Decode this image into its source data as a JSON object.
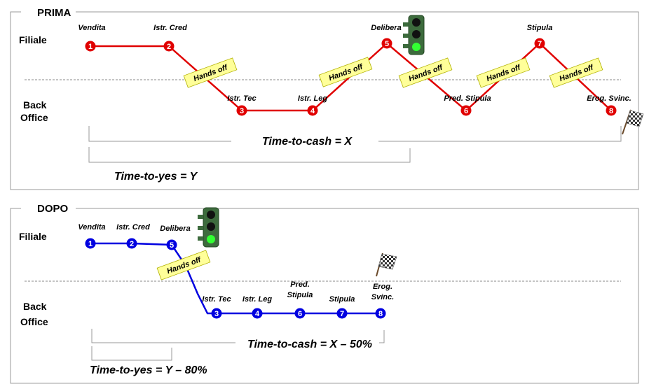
{
  "sections": [
    {
      "title": "PRIMA",
      "rows": {
        "filiale": "Filiale",
        "back_office": [
          "Back",
          "Office"
        ]
      },
      "color": "#e00000",
      "steps": [
        {
          "num": "1",
          "label": "Vendita"
        },
        {
          "num": "2",
          "label": "Istr. Cred"
        },
        {
          "num": "3",
          "label": "Istr. Tec"
        },
        {
          "num": "4",
          "label": "Istr. Leg"
        },
        {
          "num": "5",
          "label": "Delibera"
        },
        {
          "num": "6",
          "label": "Pred. Stipula"
        },
        {
          "num": "7",
          "label": "Stipula"
        },
        {
          "num": "8",
          "label": "Erog. Svinc."
        }
      ],
      "hands_off": [
        "Hands off",
        "Hands off",
        "Hands off",
        "Hands off",
        "Hands off"
      ],
      "time_to_cash": "Time-to-cash = X",
      "time_to_yes": "Time-to-yes = Y"
    },
    {
      "title": "DOPO",
      "rows": {
        "filiale": "Filiale",
        "back_office": [
          "Back",
          "Office"
        ]
      },
      "color": "#0000e0",
      "steps": [
        {
          "num": "1",
          "label": "Vendita"
        },
        {
          "num": "2",
          "label": "Istr. Cred"
        },
        {
          "num": "5",
          "label": "Delibera"
        },
        {
          "num": "3",
          "label": "Istr. Tec"
        },
        {
          "num": "4",
          "label": "Istr. Leg"
        },
        {
          "num": "6",
          "label": [
            "Pred.",
            "Stipula"
          ]
        },
        {
          "num": "7",
          "label": "Stipula"
        },
        {
          "num": "8",
          "label": [
            "Erog.",
            "Svinc."
          ]
        }
      ],
      "hands_off": [
        "Hands off"
      ],
      "time_to_cash": "Time-to-cash = X – 50%",
      "time_to_yes": "Time-to-yes = Y – 80%"
    }
  ],
  "icons": [
    "traffic-light-icon",
    "checkered-flag-icon"
  ],
  "colors": {
    "hands_off_bg": "#ffff99",
    "traffic_light_body": "#3d6b3d",
    "green_light": "#33ff33"
  }
}
